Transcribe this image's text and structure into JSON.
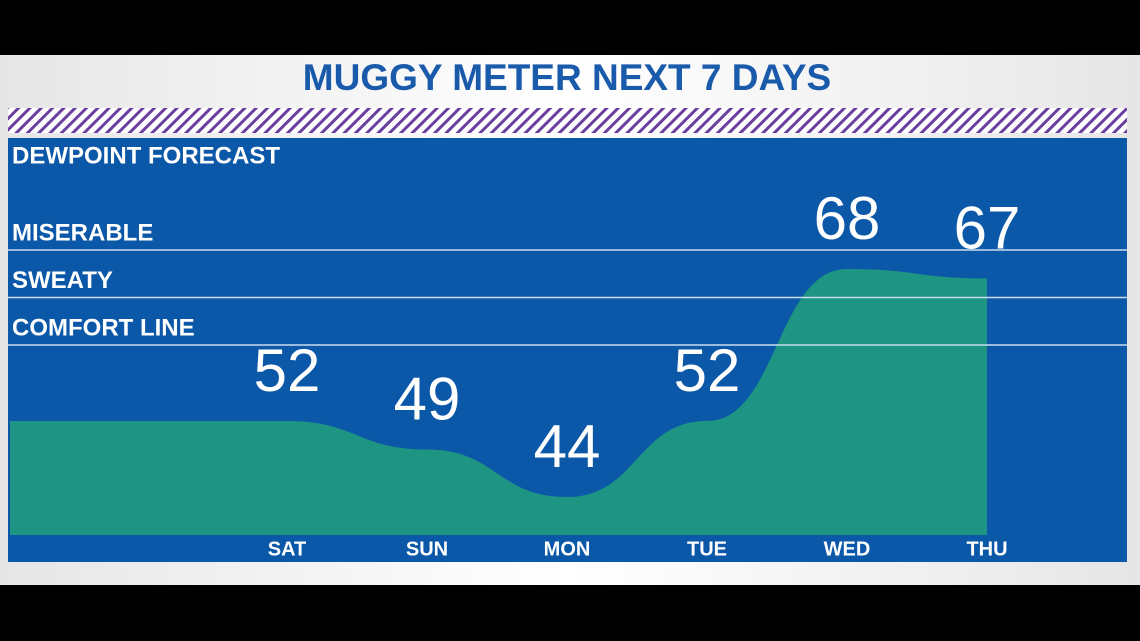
{
  "chart_data": {
    "type": "area",
    "title": "MUGGY METER NEXT 7 DAYS",
    "subtitle": "DEWPOINT FORECAST",
    "categories": [
      "SAT",
      "SUN",
      "MON",
      "TUE",
      "WED",
      "THU"
    ],
    "values": [
      52,
      49,
      44,
      52,
      68,
      67
    ],
    "color": "#1e9483",
    "ylim": [
      40,
      70
    ],
    "yticks": [
      {
        "value": 70,
        "label": "MISERABLE"
      },
      {
        "value": 65,
        "label": "SWEATY"
      },
      {
        "value": 60,
        "label": "COMFORT LINE"
      }
    ],
    "grid": true
  }
}
